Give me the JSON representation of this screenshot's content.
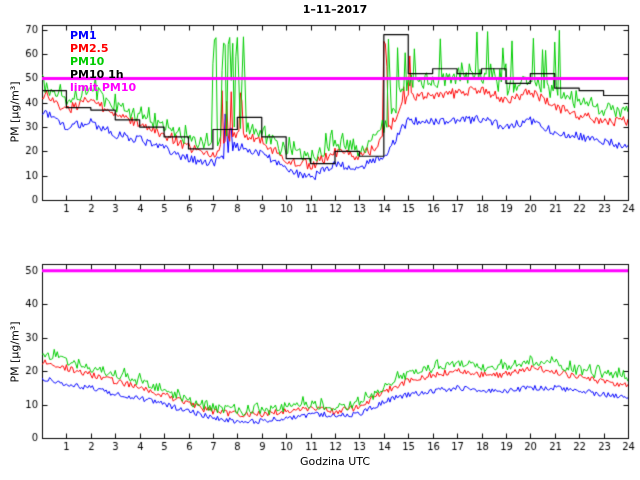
{
  "figure": {
    "title": "1–11–2017"
  },
  "axes": {
    "ylabel": "PM [µg/m³]",
    "xlabel": "Godzina UTC"
  },
  "legend": {
    "items": [
      {
        "label": "PM1",
        "color": "#0000ff"
      },
      {
        "label": "PM2.5",
        "color": "#ff0000"
      },
      {
        "label": "PM10",
        "color": "#00cc00"
      },
      {
        "label": "PM10 1h",
        "color": "#000000"
      },
      {
        "label": "limit PM10",
        "color": "#ff00ff"
      }
    ]
  },
  "chart_data": [
    {
      "type": "line",
      "title": "1–11–2017",
      "ylabel": "PM [µg/m³]",
      "xlabel": "",
      "xlim": [
        0,
        24
      ],
      "ylim": [
        0,
        72
      ],
      "xticks": [
        1,
        2,
        3,
        4,
        5,
        6,
        7,
        8,
        9,
        10,
        11,
        12,
        13,
        14,
        15,
        16,
        17,
        18,
        19,
        20,
        21,
        22,
        23,
        24
      ],
      "yticks": [
        0,
        10,
        20,
        30,
        40,
        50,
        60,
        70
      ],
      "limit_line": {
        "value": 50,
        "color": "#ff00ff",
        "label": "limit PM10"
      },
      "hours": [
        0,
        1,
        2,
        3,
        4,
        5,
        6,
        7,
        8,
        9,
        10,
        11,
        12,
        13,
        14,
        15,
        16,
        17,
        18,
        19,
        20,
        21,
        22,
        23,
        24
      ],
      "series": [
        {
          "name": "PM1",
          "color": "#0000ff",
          "noise": 1.8,
          "values": [
            37,
            30,
            32,
            27,
            25,
            21,
            17,
            15,
            22,
            19,
            13,
            9,
            15,
            13,
            18,
            33,
            32,
            33,
            33,
            30,
            33,
            28,
            26,
            24,
            22
          ],
          "spike_regions": [
            {
              "from": 7.2,
              "to": 8.0,
              "max": 36,
              "density": 0.3
            },
            {
              "from": 14.1,
              "to": 15.1,
              "max": 70,
              "density": 0.1
            }
          ]
        },
        {
          "name": "PM2.5",
          "color": "#ff0000",
          "noise": 2.2,
          "values": [
            44,
            37,
            42,
            34,
            32,
            27,
            22,
            19,
            28,
            24,
            17,
            14,
            20,
            17,
            25,
            43,
            43,
            44,
            45,
            41,
            45,
            38,
            35,
            33,
            32
          ],
          "spike_regions": [
            {
              "from": 7.1,
              "to": 8.2,
              "max": 50,
              "density": 0.3
            },
            {
              "from": 14.0,
              "to": 15.2,
              "max": 70,
              "density": 0.25
            }
          ]
        },
        {
          "name": "PM10",
          "color": "#00cc00",
          "noise": 3.2,
          "jitter_up": 4,
          "values": [
            48,
            41,
            46,
            38,
            35,
            30,
            25,
            22,
            31,
            27,
            20,
            17,
            23,
            20,
            29,
            48,
            48,
            50,
            50,
            46,
            50,
            43,
            40,
            37,
            36
          ],
          "spike_regions": [
            {
              "from": 7.0,
              "to": 8.7,
              "max": 72,
              "density": 0.5
            },
            {
              "from": 14.0,
              "to": 19.6,
              "max": 70,
              "density": 0.3
            },
            {
              "from": 19.6,
              "to": 21.3,
              "max": 70,
              "density": 0.18
            }
          ]
        }
      ],
      "step_series": {
        "name": "PM10 1h",
        "color": "#000000",
        "hourly_values": [
          45,
          38,
          37,
          33,
          30,
          26,
          21,
          29,
          34,
          26,
          17,
          15,
          20,
          18,
          68,
          52,
          54,
          52,
          54,
          48,
          52,
          46,
          45,
          43
        ]
      }
    },
    {
      "type": "line",
      "title": "",
      "ylabel": "PM [µg/m³]",
      "xlabel": "Godzina UTC",
      "xlim": [
        0,
        24
      ],
      "ylim": [
        0,
        52
      ],
      "xticks": [
        1,
        2,
        3,
        4,
        5,
        6,
        7,
        8,
        9,
        10,
        11,
        12,
        13,
        14,
        15,
        16,
        17,
        18,
        19,
        20,
        21,
        22,
        23,
        24
      ],
      "yticks": [
        0,
        10,
        20,
        30,
        40,
        50
      ],
      "limit_line": {
        "value": 50,
        "color": "#ff00ff",
        "label": "limit PM10"
      },
      "hours": [
        0,
        1,
        2,
        3,
        4,
        5,
        6,
        7,
        8,
        9,
        10,
        11,
        12,
        13,
        14,
        15,
        16,
        17,
        18,
        19,
        20,
        21,
        22,
        23,
        24
      ],
      "series": [
        {
          "name": "PM1",
          "color": "#0000ff",
          "noise": 0.8,
          "values": [
            18,
            16,
            15,
            13,
            12,
            10,
            8,
            6,
            5,
            5,
            6,
            7,
            7,
            7,
            11,
            13,
            14,
            15,
            14,
            14,
            15,
            15,
            14,
            13,
            12
          ]
        },
        {
          "name": "PM2.5",
          "color": "#ff0000",
          "noise": 1.0,
          "values": [
            23,
            21,
            19,
            17,
            15,
            13,
            10,
            8,
            7,
            7,
            8,
            9,
            8,
            9,
            14,
            17,
            19,
            20,
            19,
            19,
            21,
            20,
            18,
            17,
            16
          ]
        },
        {
          "name": "PM10",
          "color": "#00cc00",
          "noise": 1.4,
          "jitter_up": 1.6,
          "values": [
            25,
            23,
            21,
            19,
            17,
            14,
            11,
            9,
            8,
            8,
            9,
            10,
            9,
            10,
            15,
            19,
            21,
            22,
            21,
            21,
            23,
            22,
            20,
            19,
            18
          ]
        }
      ]
    }
  ]
}
